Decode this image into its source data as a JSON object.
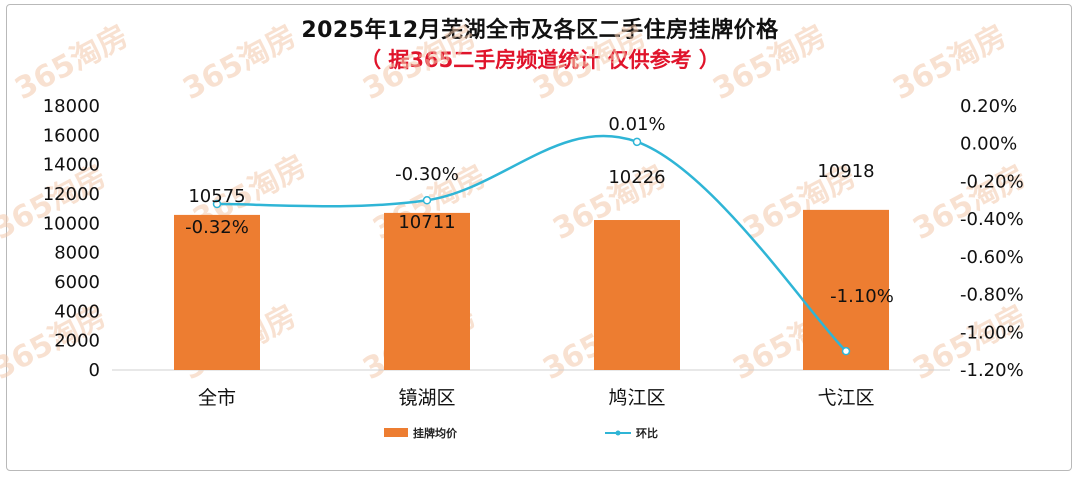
{
  "header": {
    "title": "2025年12月芜湖全市及各区二手住房挂牌价格",
    "subtitle": "（ 据365二手房频道统计 仅供参考 ）"
  },
  "watermark": {
    "text": "365淘房"
  },
  "chart_data": {
    "type": "bar",
    "categories": [
      "全市",
      "镜湖区",
      "鸠江区",
      "弋江区"
    ],
    "series": [
      {
        "name": "挂牌均价",
        "type": "bar",
        "axis": "left",
        "values": [
          10575,
          10711,
          10226,
          10918
        ],
        "labels": [
          "10575",
          "10711",
          "10226",
          "10918"
        ],
        "color": "#ed7d31"
      },
      {
        "name": "环比",
        "type": "line",
        "axis": "right",
        "values": [
          -0.32,
          -0.3,
          0.01,
          -1.1
        ],
        "labels": [
          "-0.32%",
          "-0.30%",
          "0.01%",
          "-1.10%"
        ],
        "color": "#2fb5d6"
      }
    ],
    "y_left": {
      "min": 0,
      "max": 18000,
      "step": 2000,
      "ticks": [
        "0",
        "2000",
        "4000",
        "6000",
        "8000",
        "10000",
        "12000",
        "14000",
        "16000",
        "18000"
      ]
    },
    "y_right": {
      "min": -1.2,
      "max": 0.2,
      "step": 0.2,
      "ticks": [
        "-1.20%",
        "-1.00%",
        "-0.80%",
        "-0.60%",
        "-0.40%",
        "-0.20%",
        "0.00%",
        "0.20%"
      ]
    },
    "legend": {
      "position": "bottom"
    },
    "grid": false
  }
}
